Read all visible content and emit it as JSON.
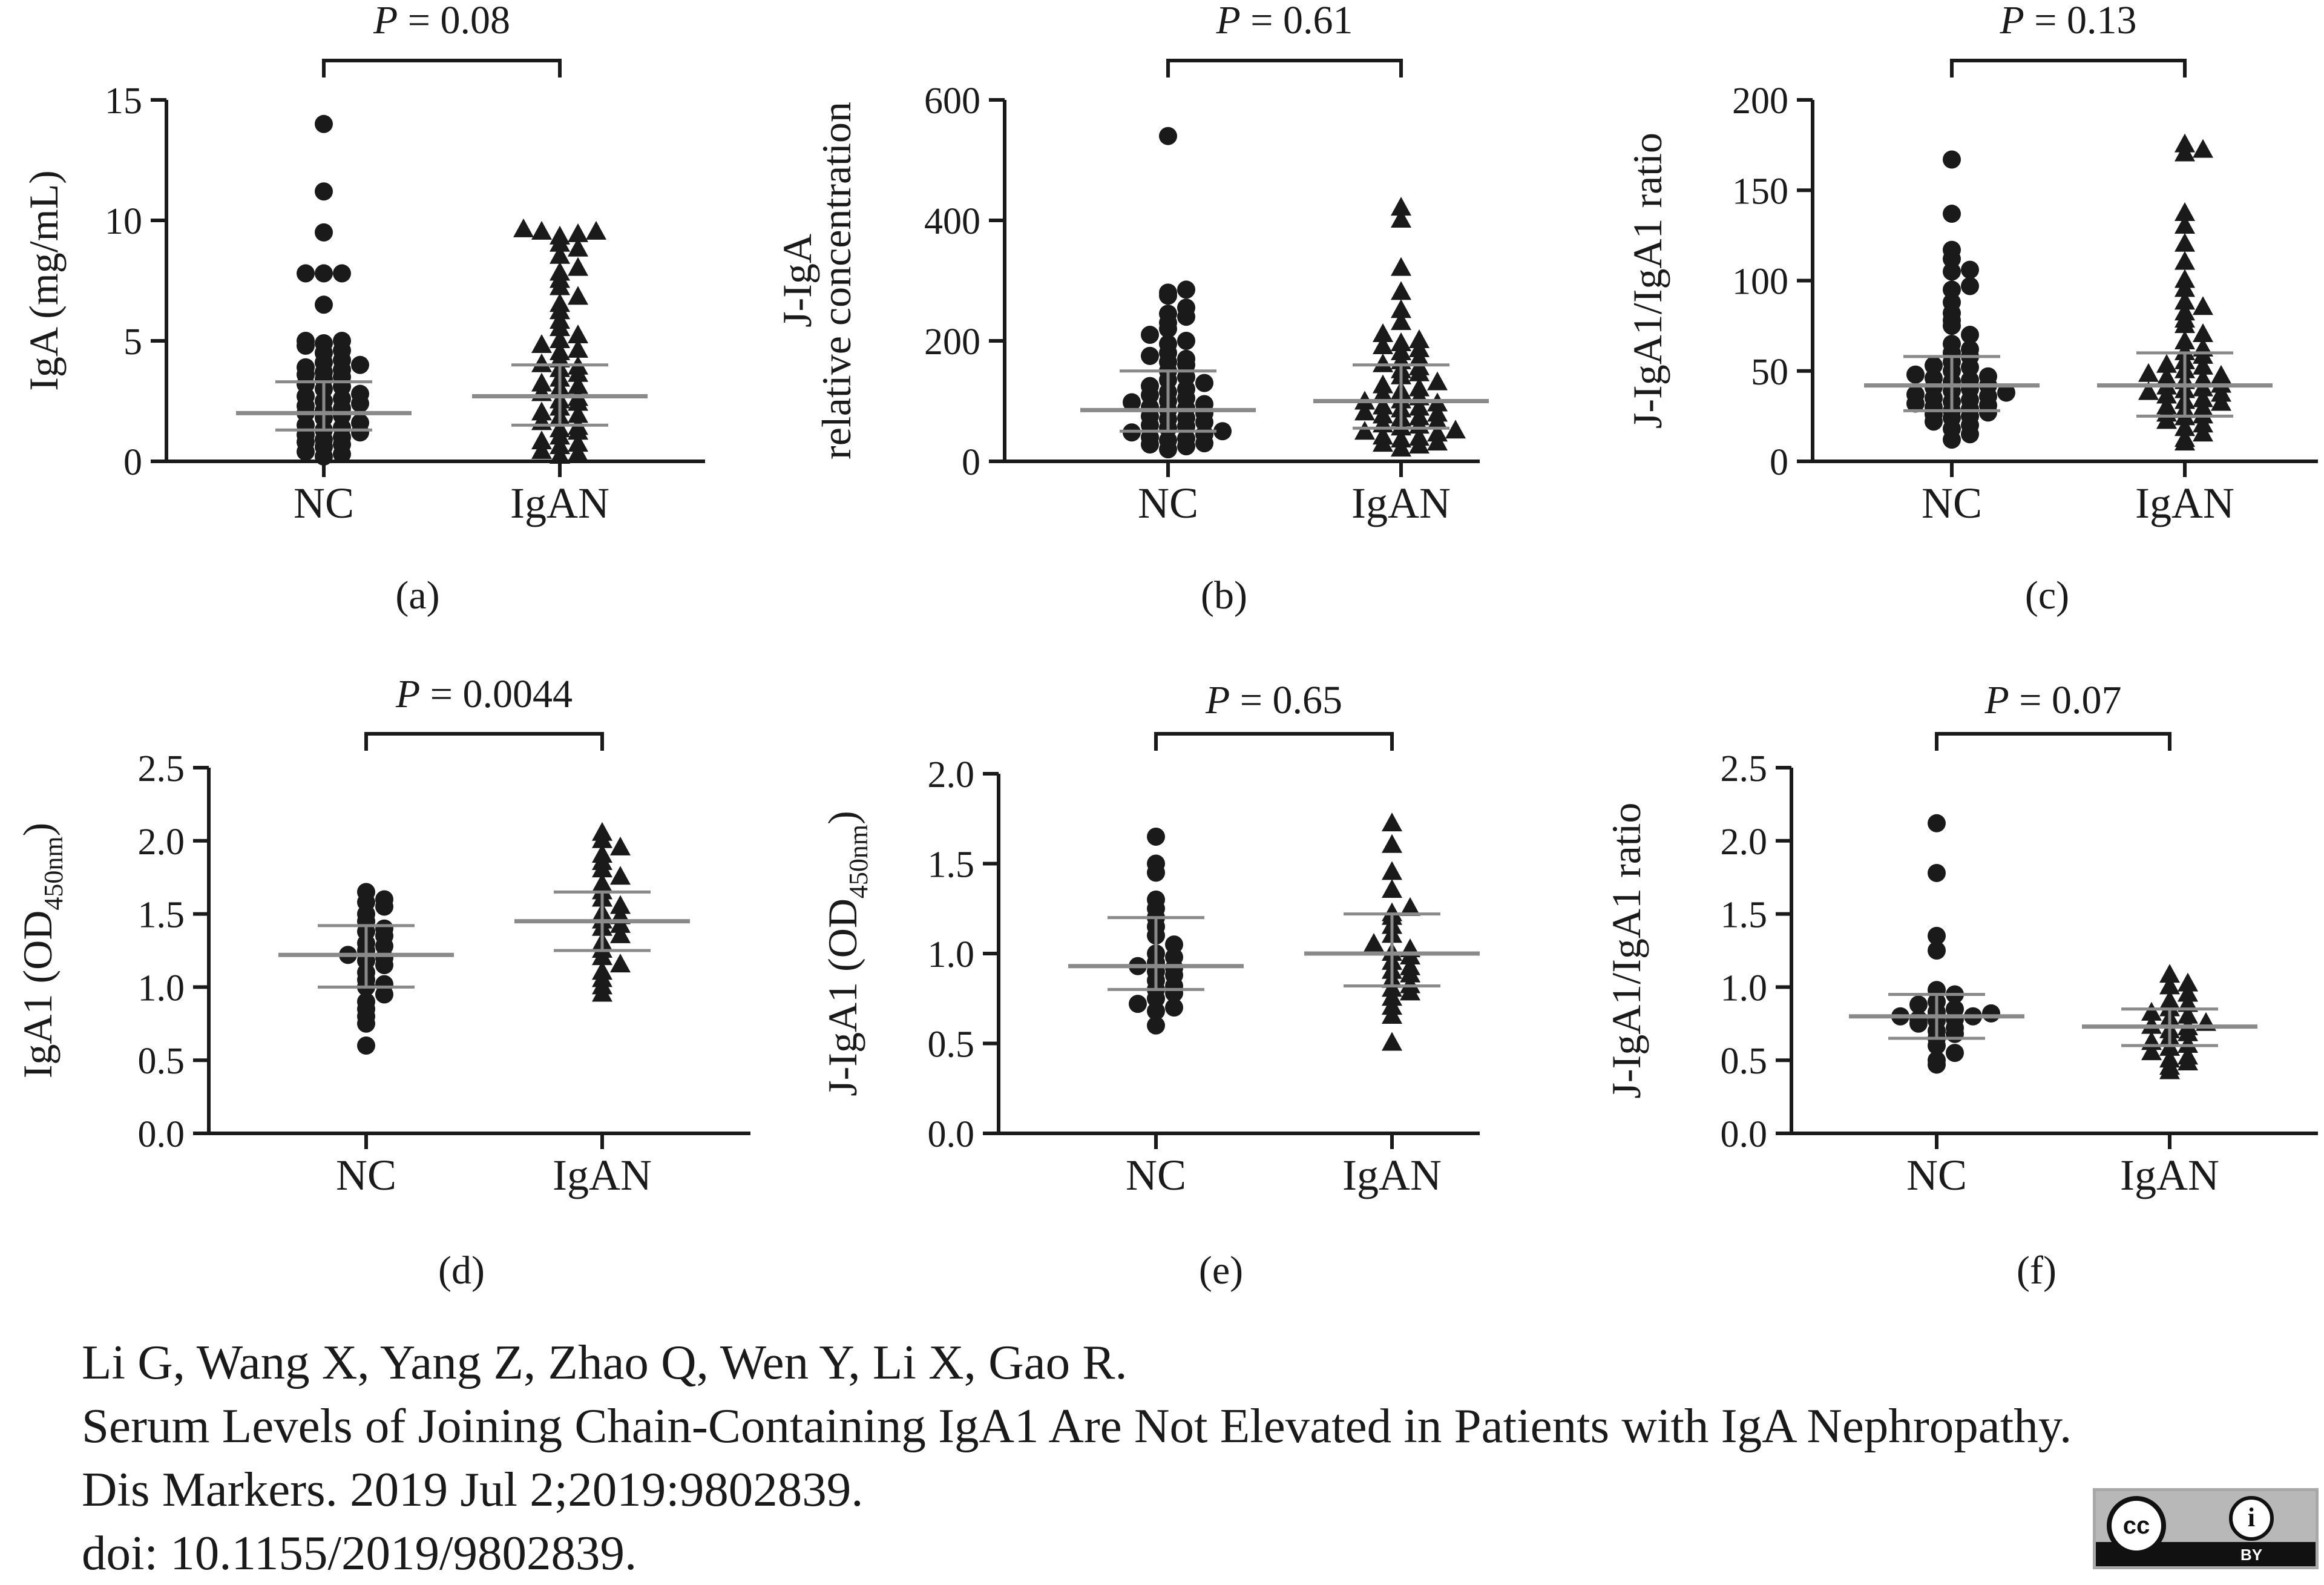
{
  "chart_data": [
    {
      "panel": "(a)",
      "type": "scatter",
      "ylabel": [
        "IgA (mg/mL)"
      ],
      "yticks": [
        "0",
        "5",
        "10",
        "15"
      ],
      "ytick_values": [
        0,
        5,
        10,
        15
      ],
      "ylim": [
        0,
        15
      ],
      "categories": [
        "NC",
        "IgAN"
      ],
      "pvalue": "P = 0.08",
      "series": [
        {
          "name": "NC",
          "marker": "circle",
          "median": 2.0,
          "iqr": [
            1.3,
            3.3
          ],
          "values": [
            14.0,
            11.2,
            9.5,
            7.8,
            7.8,
            7.8,
            6.5,
            5.0,
            5.0,
            4.8,
            4.5,
            4.2,
            4.0,
            3.8,
            3.6,
            3.4,
            3.2,
            3.0,
            2.8,
            2.6,
            2.4,
            2.2,
            2.0,
            1.8,
            1.6,
            1.4,
            1.2,
            1.0,
            0.8,
            0.6,
            0.4,
            0.2,
            4.6,
            3.9,
            3.1,
            2.5,
            1.9,
            1.3,
            0.7,
            4.9,
            4.1,
            3.5,
            2.7,
            2.1,
            1.5,
            0.9,
            0.3,
            3.7,
            2.3,
            1.1
          ]
        },
        {
          "name": "IgAN",
          "marker": "triangle",
          "median": 2.7,
          "iqr": [
            1.5,
            4.0
          ],
          "values": [
            9.6,
            9.5,
            9.5,
            9.4,
            9.3,
            9.0,
            8.8,
            8.5,
            8.0,
            7.8,
            7.5,
            7.2,
            6.8,
            6.5,
            6.2,
            5.8,
            5.5,
            5.2,
            5.0,
            4.8,
            4.5,
            4.2,
            4.0,
            3.8,
            3.6,
            3.4,
            3.2,
            3.0,
            2.8,
            2.6,
            2.4,
            2.2,
            2.0,
            1.8,
            1.6,
            1.4,
            1.2,
            1.0,
            0.8,
            0.6,
            0.4,
            0.2,
            4.6,
            3.9,
            3.1,
            2.5,
            1.9,
            1.3,
            0.7,
            0.3
          ]
        }
      ]
    },
    {
      "panel": "(b)",
      "type": "scatter",
      "ylabel": [
        "J-IgA",
        "relative concentration"
      ],
      "yticks": [
        "0",
        "200",
        "400",
        "600"
      ],
      "ytick_values": [
        0,
        200,
        400,
        600
      ],
      "ylim": [
        0,
        600
      ],
      "categories": [
        "NC",
        "IgAN"
      ],
      "pvalue": "P = 0.61",
      "series": [
        {
          "name": "NC",
          "marker": "circle",
          "median": 85,
          "iqr": [
            50,
            150
          ],
          "values": [
            540,
            285,
            280,
            275,
            255,
            245,
            240,
            230,
            210,
            195,
            180,
            170,
            160,
            150,
            140,
            130,
            120,
            110,
            100,
            95,
            90,
            85,
            80,
            75,
            70,
            65,
            60,
            55,
            50,
            45,
            40,
            35,
            30,
            25,
            20,
            200,
            165,
            135,
            115,
            105,
            88,
            72,
            58,
            48,
            38,
            28,
            220,
            175,
            125,
            98
          ]
        },
        {
          "name": "IgAN",
          "marker": "triangle",
          "median": 100,
          "iqr": [
            55,
            160
          ],
          "values": [
            420,
            400,
            320,
            280,
            250,
            230,
            210,
            200,
            190,
            180,
            170,
            160,
            150,
            140,
            130,
            120,
            110,
            100,
            95,
            90,
            85,
            80,
            75,
            70,
            65,
            60,
            55,
            50,
            45,
            40,
            35,
            30,
            25,
            20,
            185,
            165,
            145,
            125,
            105,
            88,
            72,
            58,
            48,
            38,
            28,
            195,
            155,
            115,
            98,
            78
          ]
        }
      ]
    },
    {
      "panel": "(c)",
      "type": "scatter",
      "ylabel": [
        "J-IgA1/IgA1 ratio"
      ],
      "yticks": [
        "0",
        "50",
        "100",
        "150",
        "200"
      ],
      "ytick_values": [
        0,
        50,
        100,
        150,
        200
      ],
      "ylim": [
        0,
        200
      ],
      "categories": [
        "NC",
        "IgAN"
      ],
      "pvalue": "P = 0.13",
      "series": [
        {
          "name": "NC",
          "marker": "circle",
          "median": 42,
          "iqr": [
            28,
            58
          ],
          "values": [
            167,
            137,
            117,
            112,
            106,
            105,
            97,
            95,
            88,
            82,
            78,
            75,
            70,
            65,
            62,
            58,
            55,
            52,
            50,
            48,
            46,
            44,
            42,
            40,
            38,
            36,
            34,
            32,
            30,
            28,
            26,
            24,
            22,
            20,
            18,
            15,
            12,
            60,
            53,
            47,
            41,
            37,
            33,
            29,
            25,
            45,
            39,
            35,
            31,
            27
          ]
        },
        {
          "name": "IgAN",
          "marker": "triangle",
          "median": 42,
          "iqr": [
            25,
            60
          ],
          "values": [
            175,
            172,
            170,
            137,
            130,
            120,
            110,
            100,
            95,
            88,
            85,
            82,
            78,
            75,
            70,
            66,
            62,
            58,
            55,
            52,
            50,
            48,
            46,
            44,
            42,
            40,
            38,
            36,
            34,
            32,
            30,
            28,
            26,
            24,
            22,
            20,
            18,
            15,
            12,
            10,
            60,
            53,
            47,
            41,
            37,
            33,
            29,
            25,
            45,
            39
          ]
        }
      ]
    },
    {
      "panel": "(d)",
      "type": "scatter",
      "ylabel": [
        "IgA1 (OD",
        "450nm",
        ")"
      ],
      "yticks": [
        "0.0",
        "0.5",
        "1.0",
        "1.5",
        "2.0",
        "2.5"
      ],
      "ytick_values": [
        0,
        0.5,
        1.0,
        1.5,
        2.0,
        2.5
      ],
      "ylim": [
        0,
        2.5
      ],
      "categories": [
        "NC",
        "IgAN"
      ],
      "pvalue": "P = 0.0044",
      "series": [
        {
          "name": "NC",
          "marker": "circle",
          "median": 1.22,
          "iqr": [
            1.0,
            1.42
          ],
          "values": [
            1.65,
            1.6,
            1.58,
            1.55,
            1.5,
            1.45,
            1.4,
            1.38,
            1.35,
            1.3,
            1.28,
            1.25,
            1.22,
            1.2,
            1.18,
            1.15,
            1.1,
            1.05,
            1.02,
            1.0,
            0.95,
            0.9,
            0.85,
            0.8,
            0.75,
            0.6
          ]
        },
        {
          "name": "IgAN",
          "marker": "triangle",
          "median": 1.45,
          "iqr": [
            1.25,
            1.65
          ],
          "values": [
            2.05,
            2.0,
            1.95,
            1.9,
            1.85,
            1.8,
            1.75,
            1.7,
            1.65,
            1.6,
            1.55,
            1.5,
            1.48,
            1.45,
            1.42,
            1.4,
            1.35,
            1.3,
            1.25,
            1.2,
            1.15,
            1.1,
            1.05,
            1.0,
            0.95
          ]
        }
      ]
    },
    {
      "panel": "(e)",
      "type": "scatter",
      "ylabel": [
        "J-IgA1 (OD",
        "450nm",
        ")"
      ],
      "yticks": [
        "0.0",
        "0.5",
        "1.0",
        "1.5",
        "2.0"
      ],
      "ytick_values": [
        0,
        0.5,
        1.0,
        1.5,
        2.0
      ],
      "ylim": [
        0,
        2.0
      ],
      "categories": [
        "NC",
        "IgAN"
      ],
      "pvalue": "P = 0.65",
      "series": [
        {
          "name": "NC",
          "marker": "circle",
          "median": 0.93,
          "iqr": [
            0.8,
            1.2
          ],
          "values": [
            1.65,
            1.5,
            1.45,
            1.3,
            1.25,
            1.2,
            1.15,
            1.1,
            1.05,
            1.0,
            0.98,
            0.95,
            0.93,
            0.92,
            0.9,
            0.88,
            0.85,
            0.82,
            0.8,
            0.78,
            0.75,
            0.72,
            0.7,
            0.68,
            0.6
          ]
        },
        {
          "name": "IgAN",
          "marker": "triangle",
          "median": 1.0,
          "iqr": [
            0.82,
            1.22
          ],
          "values": [
            1.72,
            1.6,
            1.45,
            1.35,
            1.25,
            1.22,
            1.2,
            1.15,
            1.1,
            1.05,
            1.02,
            1.0,
            0.98,
            0.95,
            0.92,
            0.9,
            0.88,
            0.85,
            0.82,
            0.8,
            0.78,
            0.75,
            0.7,
            0.65,
            0.5
          ]
        }
      ]
    },
    {
      "panel": "(f)",
      "type": "scatter",
      "ylabel": [
        "J-IgA1/IgA1 ratio"
      ],
      "yticks": [
        "0.0",
        "0.5",
        "1.0",
        "1.5",
        "2.0",
        "2.5"
      ],
      "ytick_values": [
        0,
        0.5,
        1.0,
        1.5,
        2.0,
        2.5
      ],
      "ylim": [
        0,
        2.5
      ],
      "categories": [
        "NC",
        "IgAN"
      ],
      "pvalue": "P = 0.07",
      "series": [
        {
          "name": "NC",
          "marker": "circle",
          "median": 0.8,
          "iqr": [
            0.65,
            0.95
          ],
          "values": [
            2.12,
            1.78,
            1.35,
            1.25,
            0.98,
            0.95,
            0.9,
            0.88,
            0.85,
            0.83,
            0.82,
            0.8,
            0.8,
            0.78,
            0.78,
            0.77,
            0.75,
            0.72,
            0.7,
            0.68,
            0.65,
            0.6,
            0.55,
            0.5,
            0.47
          ]
        },
        {
          "name": "IgAN",
          "marker": "triangle",
          "median": 0.73,
          "iqr": [
            0.6,
            0.85
          ],
          "values": [
            1.08,
            1.02,
            1.0,
            0.95,
            0.9,
            0.88,
            0.85,
            0.82,
            0.8,
            0.78,
            0.75,
            0.73,
            0.72,
            0.7,
            0.68,
            0.65,
            0.62,
            0.6,
            0.58,
            0.55,
            0.52,
            0.5,
            0.48,
            0.45,
            0.42
          ]
        }
      ]
    }
  ],
  "citation": {
    "authors": "Li G, Wang X, Yang Z, Zhao Q, Wen Y, Li X, Gao R.",
    "title": "Serum Levels of Joining Chain-Containing IgA1 Are Not Elevated in Patients with IgA Nephropathy.",
    "journal": "Dis Markers. 2019 Jul 2;2019:9802839.",
    "doi": "doi: 10.1155/2019/9802839."
  },
  "license_badge": {
    "cc": "cc",
    "by": "BY",
    "person": "i"
  },
  "colors": {
    "ink": "#1a1a1a",
    "median_line": "#8a8a8a"
  }
}
